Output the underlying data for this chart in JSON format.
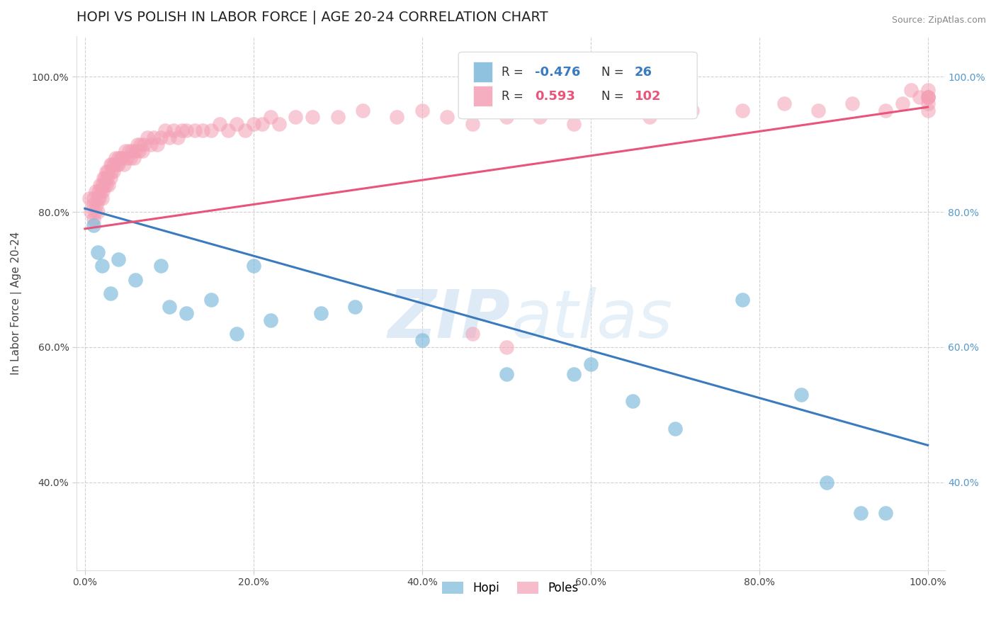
{
  "title": "HOPI VS POLISH IN LABOR FORCE | AGE 20-24 CORRELATION CHART",
  "source": "Source: ZipAtlas.com",
  "ylabel": "In Labor Force | Age 20-24",
  "xlim": [
    -0.01,
    1.02
  ],
  "ylim": [
    0.27,
    1.06
  ],
  "xticks": [
    0.0,
    0.2,
    0.4,
    0.6,
    0.8,
    1.0
  ],
  "yticks": [
    0.4,
    0.6,
    0.8,
    1.0
  ],
  "xticklabels": [
    "0.0%",
    "20.0%",
    "40.0%",
    "60.0%",
    "80.0%",
    "100.0%"
  ],
  "yticklabels": [
    "40.0%",
    "60.0%",
    "80.0%",
    "100.0%"
  ],
  "hopi_R": -0.476,
  "hopi_N": 26,
  "poles_R": 0.593,
  "poles_N": 102,
  "hopi_color": "#7ab8d9",
  "poles_color": "#f4a0b5",
  "hopi_line_color": "#3a7abf",
  "poles_line_color": "#e8547a",
  "background_color": "#ffffff",
  "watermark": "ZIPatlas",
  "title_fontsize": 14,
  "axis_label_fontsize": 11,
  "tick_fontsize": 10,
  "hopi_x": [
    0.01,
    0.015,
    0.02,
    0.03,
    0.04,
    0.06,
    0.09,
    0.1,
    0.12,
    0.15,
    0.18,
    0.2,
    0.22,
    0.28,
    0.32,
    0.4,
    0.5,
    0.58,
    0.6,
    0.65,
    0.7,
    0.78,
    0.85,
    0.88,
    0.92,
    0.95
  ],
  "hopi_y": [
    0.78,
    0.74,
    0.72,
    0.68,
    0.73,
    0.7,
    0.72,
    0.66,
    0.65,
    0.67,
    0.62,
    0.72,
    0.64,
    0.65,
    0.66,
    0.61,
    0.56,
    0.56,
    0.575,
    0.52,
    0.48,
    0.67,
    0.53,
    0.4,
    0.355,
    0.355
  ],
  "poles_x_dense": [
    0.005,
    0.007,
    0.009,
    0.01,
    0.01,
    0.012,
    0.013,
    0.014,
    0.015,
    0.015,
    0.016,
    0.017,
    0.018,
    0.019,
    0.02,
    0.02,
    0.021,
    0.022,
    0.023,
    0.024,
    0.025,
    0.025,
    0.026,
    0.027,
    0.028,
    0.03,
    0.03,
    0.031,
    0.032,
    0.034,
    0.035,
    0.036,
    0.038,
    0.04,
    0.04,
    0.042,
    0.044,
    0.046,
    0.048,
    0.05,
    0.052,
    0.054,
    0.056,
    0.058,
    0.06,
    0.062,
    0.064,
    0.066,
    0.068,
    0.07,
    0.074,
    0.078,
    0.082,
    0.086,
    0.09,
    0.095,
    0.1,
    0.105,
    0.11,
    0.115,
    0.12,
    0.13,
    0.14,
    0.15,
    0.16,
    0.17,
    0.18,
    0.19,
    0.2,
    0.21,
    0.22,
    0.23,
    0.25,
    0.27,
    0.3,
    0.33,
    0.37,
    0.4,
    0.43,
    0.46,
    0.5,
    0.54,
    0.58,
    0.62,
    0.67,
    0.72,
    0.78,
    0.83,
    0.87,
    0.91,
    0.95,
    0.97,
    0.98,
    0.99,
    1.0,
    1.0,
    1.0,
    1.0,
    1.0,
    1.0,
    0.46,
    0.5
  ],
  "poles_y_dense": [
    0.82,
    0.8,
    0.81,
    0.82,
    0.79,
    0.8,
    0.83,
    0.81,
    0.82,
    0.8,
    0.83,
    0.82,
    0.84,
    0.83,
    0.84,
    0.82,
    0.83,
    0.85,
    0.84,
    0.85,
    0.84,
    0.86,
    0.85,
    0.86,
    0.84,
    0.85,
    0.87,
    0.86,
    0.87,
    0.86,
    0.87,
    0.88,
    0.87,
    0.88,
    0.87,
    0.88,
    0.88,
    0.87,
    0.89,
    0.88,
    0.89,
    0.88,
    0.89,
    0.88,
    0.89,
    0.9,
    0.89,
    0.9,
    0.89,
    0.9,
    0.91,
    0.9,
    0.91,
    0.9,
    0.91,
    0.92,
    0.91,
    0.92,
    0.91,
    0.92,
    0.92,
    0.92,
    0.92,
    0.92,
    0.93,
    0.92,
    0.93,
    0.92,
    0.93,
    0.93,
    0.94,
    0.93,
    0.94,
    0.94,
    0.94,
    0.95,
    0.94,
    0.95,
    0.94,
    0.93,
    0.94,
    0.94,
    0.93,
    0.95,
    0.94,
    0.95,
    0.95,
    0.96,
    0.95,
    0.96,
    0.95,
    0.96,
    0.98,
    0.97,
    0.97,
    0.97,
    0.95,
    0.96,
    0.97,
    0.98,
    0.62,
    0.6
  ]
}
